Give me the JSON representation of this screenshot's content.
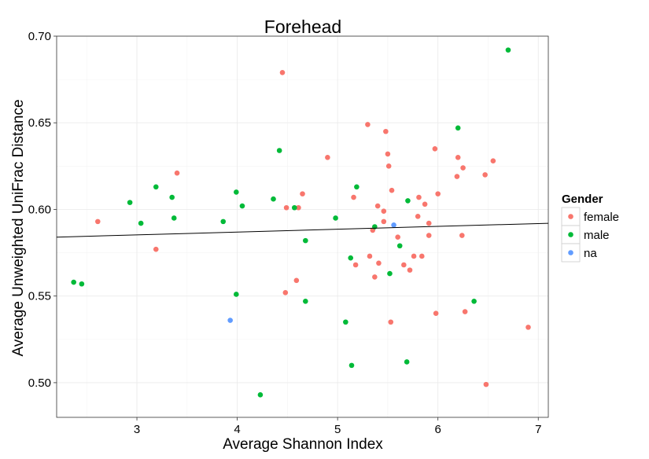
{
  "chart_data": {
    "type": "scatter",
    "title": "Forehead",
    "xlabel": "Average Shannon Index",
    "ylabel": "Average Unweighted UniFrac Distance",
    "xlim": [
      2.2,
      7.1
    ],
    "ylim": [
      0.48,
      0.7
    ],
    "x_ticks": [
      3,
      4,
      5,
      6,
      7
    ],
    "x_tick_labels": [
      "3",
      "4",
      "5",
      "6",
      "7"
    ],
    "y_ticks": [
      0.5,
      0.55,
      0.6,
      0.65,
      0.7
    ],
    "y_tick_labels": [
      "0.50",
      "0.55",
      "0.60",
      "0.65",
      "0.70"
    ],
    "grid": true,
    "legend": {
      "title": "Gender",
      "position": "right"
    },
    "trend_line": {
      "x": [
        2.2,
        7.1
      ],
      "y": [
        0.584,
        0.592
      ]
    },
    "series": [
      {
        "name": "female",
        "color": "#F8766D",
        "points": [
          [
            2.61,
            0.593
          ],
          [
            3.19,
            0.577
          ],
          [
            3.4,
            0.621
          ],
          [
            4.45,
            0.679
          ],
          [
            4.48,
            0.552
          ],
          [
            4.49,
            0.601
          ],
          [
            4.59,
            0.559
          ],
          [
            4.61,
            0.601
          ],
          [
            4.65,
            0.609
          ],
          [
            4.9,
            0.63
          ],
          [
            5.16,
            0.607
          ],
          [
            5.18,
            0.568
          ],
          [
            5.3,
            0.649
          ],
          [
            5.32,
            0.573
          ],
          [
            5.35,
            0.588
          ],
          [
            5.37,
            0.561
          ],
          [
            5.4,
            0.602
          ],
          [
            5.41,
            0.569
          ],
          [
            5.46,
            0.593
          ],
          [
            5.46,
            0.599
          ],
          [
            5.48,
            0.645
          ],
          [
            5.5,
            0.632
          ],
          [
            5.51,
            0.625
          ],
          [
            5.53,
            0.535
          ],
          [
            5.54,
            0.611
          ],
          [
            5.6,
            0.584
          ],
          [
            5.66,
            0.568
          ],
          [
            5.72,
            0.565
          ],
          [
            5.76,
            0.573
          ],
          [
            5.8,
            0.596
          ],
          [
            5.81,
            0.607
          ],
          [
            5.84,
            0.573
          ],
          [
            5.87,
            0.603
          ],
          [
            5.91,
            0.592
          ],
          [
            5.91,
            0.585
          ],
          [
            5.97,
            0.635
          ],
          [
            5.98,
            0.54
          ],
          [
            6.0,
            0.609
          ],
          [
            6.19,
            0.619
          ],
          [
            6.2,
            0.63
          ],
          [
            6.24,
            0.585
          ],
          [
            6.25,
            0.624
          ],
          [
            6.27,
            0.541
          ],
          [
            6.47,
            0.62
          ],
          [
            6.48,
            0.499
          ],
          [
            6.55,
            0.628
          ],
          [
            6.9,
            0.532
          ]
        ]
      },
      {
        "name": "male",
        "color": "#00BA38",
        "points": [
          [
            2.37,
            0.558
          ],
          [
            2.45,
            0.557
          ],
          [
            2.93,
            0.604
          ],
          [
            3.04,
            0.592
          ],
          [
            3.19,
            0.613
          ],
          [
            3.35,
            0.607
          ],
          [
            3.37,
            0.595
          ],
          [
            3.86,
            0.593
          ],
          [
            3.99,
            0.61
          ],
          [
            3.99,
            0.551
          ],
          [
            4.05,
            0.602
          ],
          [
            4.23,
            0.493
          ],
          [
            4.36,
            0.606
          ],
          [
            4.42,
            0.634
          ],
          [
            4.57,
            0.601
          ],
          [
            4.68,
            0.582
          ],
          [
            4.68,
            0.547
          ],
          [
            4.98,
            0.595
          ],
          [
            5.08,
            0.535
          ],
          [
            5.13,
            0.572
          ],
          [
            5.14,
            0.51
          ],
          [
            5.19,
            0.613
          ],
          [
            5.37,
            0.59
          ],
          [
            5.52,
            0.563
          ],
          [
            5.62,
            0.579
          ],
          [
            5.69,
            0.512
          ],
          [
            5.7,
            0.605
          ],
          [
            6.2,
            0.647
          ],
          [
            6.36,
            0.547
          ],
          [
            6.7,
            0.692
          ]
        ]
      },
      {
        "name": "na",
        "color": "#619CFF",
        "points": [
          [
            3.93,
            0.536
          ],
          [
            5.56,
            0.591
          ]
        ]
      }
    ]
  }
}
